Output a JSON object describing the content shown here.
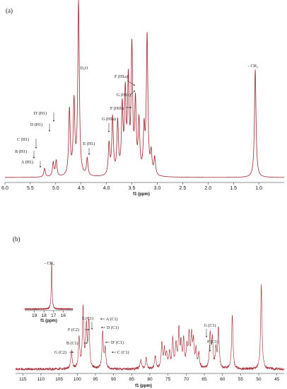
{
  "chart_data": [
    {
      "panel_label": "(a)",
      "type": "line",
      "x_label": "f1 (ppm)",
      "x_ticks": [
        "6.0",
        "5.5",
        "5.0",
        "4.5",
        "4.0",
        "3.5",
        "3.0",
        "2.5",
        "2.0",
        "1.5",
        "1.0"
      ],
      "xlim": [
        6.0,
        0.5
      ],
      "color": "#a0242e",
      "peaks": [
        {
          "ppm": 5.22,
          "h": 0.05
        },
        {
          "ppm": 5.05,
          "h": 0.08
        },
        {
          "ppm": 4.99,
          "h": 0.09
        },
        {
          "ppm": 4.73,
          "h": 0.38
        },
        {
          "ppm": 4.64,
          "h": 0.42
        },
        {
          "ppm": 4.55,
          "h": 1.0
        },
        {
          "ppm": 4.38,
          "h": 0.1
        },
        {
          "ppm": 3.95,
          "h": 0.18
        },
        {
          "ppm": 3.88,
          "h": 0.33
        },
        {
          "ppm": 3.78,
          "h": 0.3
        },
        {
          "ppm": 3.69,
          "h": 0.38
        },
        {
          "ppm": 3.63,
          "h": 0.45
        },
        {
          "ppm": 3.57,
          "h": 0.52
        },
        {
          "ppm": 3.5,
          "h": 0.72
        },
        {
          "ppm": 3.43,
          "h": 0.4
        },
        {
          "ppm": 3.36,
          "h": 0.3
        },
        {
          "ppm": 3.26,
          "h": 0.25
        },
        {
          "ppm": 3.2,
          "h": 0.8
        },
        {
          "ppm": 3.12,
          "h": 0.12
        },
        {
          "ppm": 3.05,
          "h": 0.1
        },
        {
          "ppm": 1.07,
          "h": 0.62
        }
      ],
      "annotations": [
        {
          "text": "D₂O",
          "ppm": 4.55
        },
        {
          "text": "- CH₃",
          "ppm": 1.07
        },
        {
          "text": "A (H1)",
          "ppm": 5.22
        },
        {
          "text": "B (H1)",
          "ppm": 5.05
        },
        {
          "text": "C (H1)",
          "ppm": 4.99
        },
        {
          "text": "D (H1)",
          "ppm": 4.73
        },
        {
          "text": "D' (H1)",
          "ppm": 4.64
        },
        {
          "text": "E (H1)",
          "ppm": 4.38
        },
        {
          "text": "G (H1a)",
          "ppm": 3.88
        },
        {
          "text": "F (H1b)",
          "ppm": 3.63
        },
        {
          "text": "G (H1b)",
          "ppm": 3.57
        },
        {
          "text": "F (H1a)",
          "ppm": 3.5
        }
      ]
    },
    {
      "panel_label": "(b)",
      "type": "line",
      "x_label": "f1 (ppm)",
      "x_ticks": [
        "115",
        "110",
        "105",
        "100",
        "95",
        "90",
        "85",
        "80",
        "75",
        "70",
        "65",
        "60",
        "55",
        "50",
        "45"
      ],
      "xlim": [
        117,
        43
      ],
      "color": "#a0242e",
      "peaks": [
        {
          "ppm": 101.6,
          "h": 0.2
        },
        {
          "ppm": 99.5,
          "h": 0.33
        },
        {
          "ppm": 98.4,
          "h": 0.66
        },
        {
          "ppm": 97.5,
          "h": 0.45
        },
        {
          "ppm": 96.8,
          "h": 0.52
        },
        {
          "ppm": 93.0,
          "h": 0.4
        },
        {
          "ppm": 92.3,
          "h": 0.21
        },
        {
          "ppm": 82.5,
          "h": 0.1
        },
        {
          "ppm": 81.0,
          "h": 0.12
        },
        {
          "ppm": 78.5,
          "h": 0.14
        },
        {
          "ppm": 76.7,
          "h": 0.28
        },
        {
          "ppm": 76.0,
          "h": 0.2
        },
        {
          "ppm": 75.4,
          "h": 0.15
        },
        {
          "ppm": 74.6,
          "h": 0.17
        },
        {
          "ppm": 73.7,
          "h": 0.31
        },
        {
          "ppm": 72.8,
          "h": 0.26
        },
        {
          "ppm": 72.0,
          "h": 0.42
        },
        {
          "ppm": 71.4,
          "h": 0.24
        },
        {
          "ppm": 70.7,
          "h": 0.3
        },
        {
          "ppm": 69.8,
          "h": 0.22
        },
        {
          "ppm": 69.2,
          "h": 0.36
        },
        {
          "ppm": 68.5,
          "h": 0.34
        },
        {
          "ppm": 68.0,
          "h": 0.27
        },
        {
          "ppm": 67.3,
          "h": 0.2
        },
        {
          "ppm": 66.5,
          "h": 0.16
        },
        {
          "ppm": 63.4,
          "h": 0.38
        },
        {
          "ppm": 62.8,
          "h": 0.31
        },
        {
          "ppm": 61.8,
          "h": 0.2
        },
        {
          "ppm": 61.1,
          "h": 0.45
        },
        {
          "ppm": 57.3,
          "h": 0.58
        },
        {
          "ppm": 49.3,
          "h": 0.92
        }
      ],
      "annotations": [
        {
          "text": "A (C1)",
          "ppm": 96.8
        },
        {
          "text": "E (C1)",
          "ppm": 98.4
        },
        {
          "text": "D (C1)",
          "ppm": 96.2
        },
        {
          "text": "F (C2)",
          "ppm": 99.5
        },
        {
          "text": "B (C1)",
          "ppm": 97.5
        },
        {
          "text": "G (C2)",
          "ppm": 101.6
        },
        {
          "text": "D' (C1)",
          "ppm": 93.0
        },
        {
          "text": "C (C1)",
          "ppm": 92.3
        },
        {
          "text": "G (C1)",
          "ppm": 63.4
        },
        {
          "text": "F (C1)",
          "ppm": 61.1
        }
      ],
      "inset": {
        "label": "- CH₃",
        "x_label": "f1 (ppm)",
        "x_ticks": [
          "19",
          "18",
          "17",
          "16"
        ],
        "xlim": [
          20,
          15
        ],
        "peak": {
          "ppm": 17.2,
          "h": 1.0
        }
      }
    }
  ]
}
